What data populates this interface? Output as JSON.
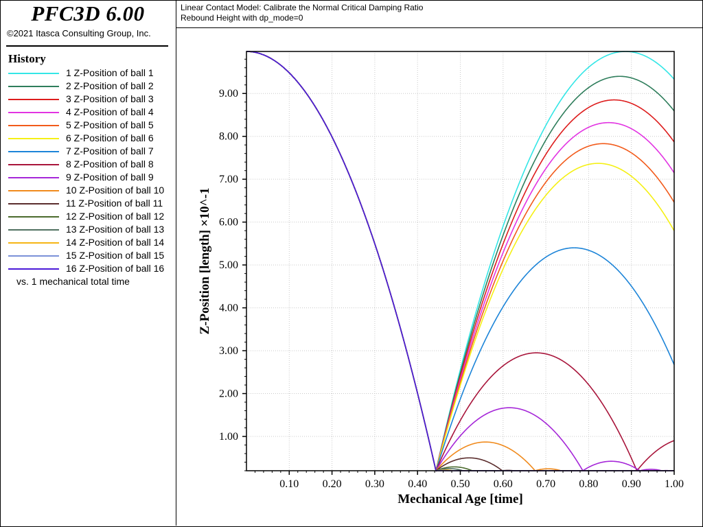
{
  "app": {
    "title": "PFC3D 6.00",
    "copyright": "©2021 Itasca Consulting Group, Inc."
  },
  "header": {
    "line1": "Linear Contact Model: Calibrate the Normal Critical Damping Ratio",
    "line2": "Rebound Height with dp_mode=0"
  },
  "legend": {
    "heading": "History",
    "vs_label": "vs. 1 mechanical total time",
    "items": [
      {
        "label": "1 Z-Position of ball 1",
        "color": "#33e6e6"
      },
      {
        "label": "2 Z-Position of ball 2",
        "color": "#2e7d5b"
      },
      {
        "label": "3 Z-Position of ball 3",
        "color": "#dd1c1c"
      },
      {
        "label": "4 Z-Position of ball 4",
        "color": "#e233e2"
      },
      {
        "label": "5 Z-Position of ball 5",
        "color": "#f25a1a"
      },
      {
        "label": "6 Z-Position of ball 6",
        "color": "#f5f014"
      },
      {
        "label": "7 Z-Position of ball 7",
        "color": "#1c84d8"
      },
      {
        "label": "8 Z-Position of ball 8",
        "color": "#a8143a"
      },
      {
        "label": "9 Z-Position of ball 9",
        "color": "#a526d8"
      },
      {
        "label": "10 Z-Position of ball 10",
        "color": "#f08a1c"
      },
      {
        "label": "11 Z-Position of ball 11",
        "color": "#5a2c2c"
      },
      {
        "label": "12 Z-Position of ball 12",
        "color": "#4a6a2c"
      },
      {
        "label": "13 Z-Position of ball 13",
        "color": "#4f7060"
      },
      {
        "label": "14 Z-Position of ball 14",
        "color": "#f5b514"
      },
      {
        "label": "15 Z-Position of ball 15",
        "color": "#7a90d8"
      },
      {
        "label": "16 Z-Position of ball 16",
        "color": "#4a18d8"
      }
    ]
  },
  "chart_data": {
    "type": "line",
    "xlabel": "Mechanical Age [time]",
    "ylabel": "Z-Position [length] ×10^-1",
    "xlim": [
      0,
      1.0
    ],
    "ylim": [
      0.2,
      9.98
    ],
    "xticks": [
      "0.10",
      "0.20",
      "0.30",
      "0.40",
      "0.50",
      "0.60",
      "0.70",
      "0.80",
      "0.90",
      "1.00"
    ],
    "xtick_values": [
      0.1,
      0.2,
      0.3,
      0.4,
      0.5,
      0.6,
      0.7,
      0.8,
      0.9,
      1.0
    ],
    "yticks": [
      "1.00",
      "2.00",
      "3.00",
      "4.00",
      "5.00",
      "6.00",
      "7.00",
      "8.00",
      "9.00"
    ],
    "ytick_values": [
      1,
      2,
      3,
      4,
      5,
      6,
      7,
      8,
      9
    ],
    "grid": true,
    "common_fall": {
      "start_height": 9.98,
      "contact_time": 0.443,
      "contact_height": 0.2
    },
    "series": [
      {
        "name": "1 Z-Position of ball 1",
        "peak_time": 0.89,
        "peak_height": 9.98
      },
      {
        "name": "2 Z-Position of ball 2",
        "peak_time": 0.87,
        "peak_height": 9.4
      },
      {
        "name": "3 Z-Position of ball 3",
        "peak_time": 0.86,
        "peak_height": 8.85
      },
      {
        "name": "4 Z-Position of ball 4",
        "peak_time": 0.85,
        "peak_height": 8.32
      },
      {
        "name": "5 Z-Position of ball 5",
        "peak_time": 0.84,
        "peak_height": 7.83
      },
      {
        "name": "6 Z-Position of ball 6",
        "peak_time": 0.83,
        "peak_height": 7.37
      },
      {
        "name": "7 Z-Position of ball 7",
        "peak_time": 0.77,
        "peak_height": 5.4
      },
      {
        "name": "8 Z-Position of ball 8",
        "peak_time": 0.68,
        "peak_height": 2.95
      },
      {
        "name": "9 Z-Position of ball 9",
        "peak_time": 0.62,
        "peak_height": 1.67
      },
      {
        "name": "10 Z-Position of ball 10",
        "peak_time": 0.555,
        "peak_height": 0.87
      },
      {
        "name": "11 Z-Position of ball 11",
        "peak_time": 0.52,
        "peak_height": 0.5
      },
      {
        "name": "12 Z-Position of ball 12",
        "peak_time": 0.47,
        "peak_height": 0.29
      },
      {
        "name": "13 Z-Position of ball 13",
        "peak_time": 0.46,
        "peak_height": 0.25
      },
      {
        "name": "14 Z-Position of ball 14",
        "peak_time": 0.455,
        "peak_height": 0.22
      },
      {
        "name": "15 Z-Position of ball 15",
        "peak_time": 0.45,
        "peak_height": 0.21
      },
      {
        "name": "16 Z-Position of ball 16",
        "peak_time": 0.445,
        "peak_height": 0.2
      }
    ]
  }
}
